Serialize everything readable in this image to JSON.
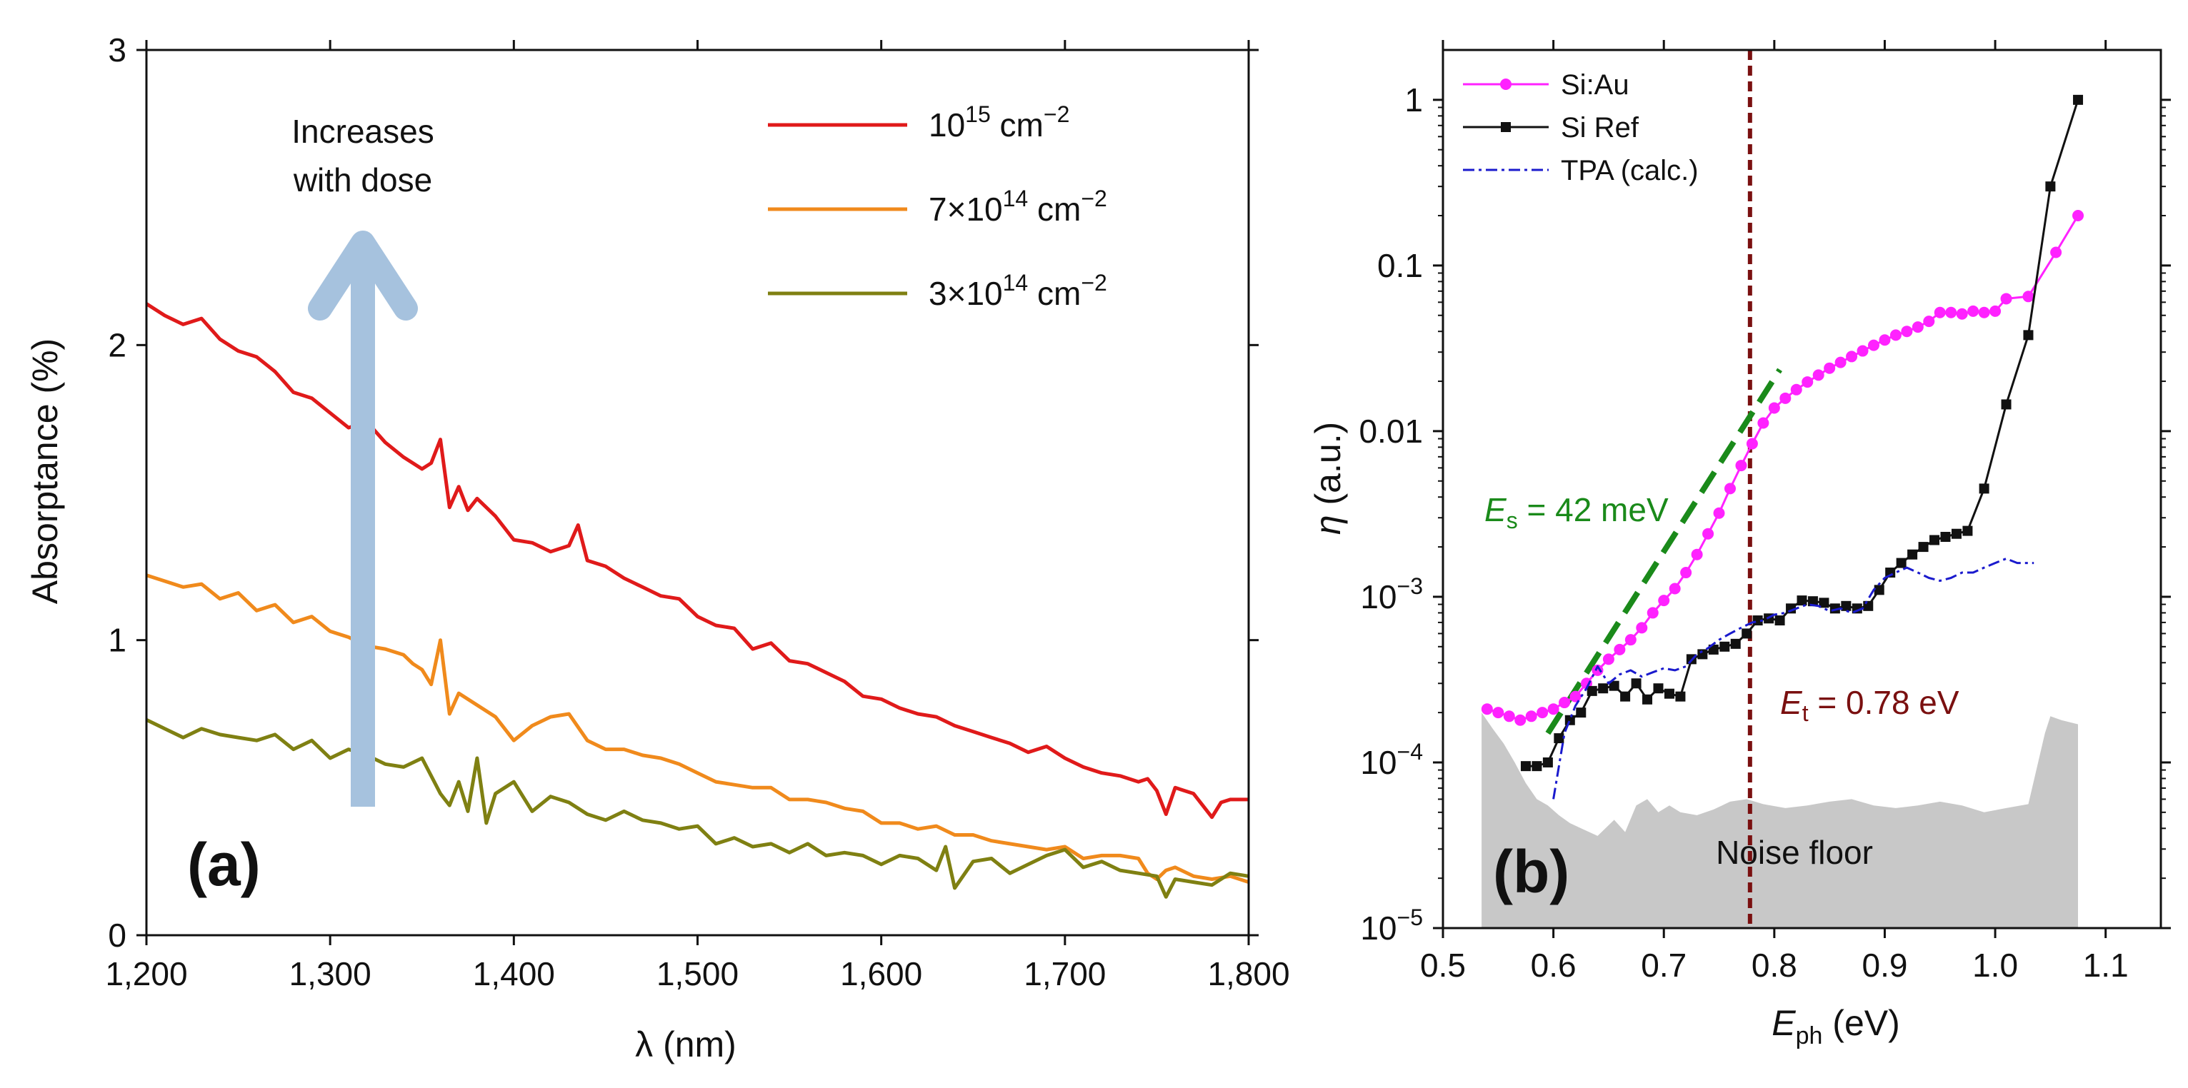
{
  "chart_data": [
    {
      "panel": "(a)",
      "type": "line",
      "xlabel": "λ (nm)",
      "ylabel": "Absorptance (%)",
      "xlim": [
        1200,
        1800
      ],
      "ylim": [
        0,
        3
      ],
      "xticks": [
        1200,
        1300,
        1400,
        1500,
        1600,
        1700,
        1800
      ],
      "xtick_labels": [
        "1,200",
        "1,300",
        "1,400",
        "1,500",
        "1,600",
        "1,700",
        "1,800"
      ],
      "yticks": [
        0,
        1,
        2,
        3
      ],
      "ytick_labels": [
        "0",
        "1",
        "2",
        "3"
      ],
      "grid": false,
      "legend_position": "top-right",
      "annotation": {
        "line1": "Increases",
        "line2": "with dose"
      },
      "series": [
        {
          "name": "10^15 cm^-2",
          "label_base": "10",
          "label_exp": "15",
          "label_unit": " cm",
          "label_unit_exp": "−2",
          "color": "#e01a1a",
          "x": [
            1200,
            1210,
            1220,
            1230,
            1240,
            1250,
            1260,
            1270,
            1280,
            1290,
            1300,
            1310,
            1320,
            1330,
            1340,
            1350,
            1355,
            1360,
            1365,
            1370,
            1375,
            1380,
            1390,
            1400,
            1410,
            1420,
            1430,
            1435,
            1440,
            1450,
            1460,
            1470,
            1480,
            1490,
            1500,
            1510,
            1520,
            1530,
            1540,
            1550,
            1560,
            1570,
            1580,
            1590,
            1600,
            1610,
            1620,
            1630,
            1640,
            1650,
            1660,
            1670,
            1680,
            1690,
            1700,
            1710,
            1720,
            1730,
            1740,
            1745,
            1750,
            1755,
            1760,
            1770,
            1780,
            1785,
            1790,
            1800
          ],
          "y": [
            2.14,
            2.1,
            2.07,
            2.09,
            2.02,
            1.98,
            1.96,
            1.91,
            1.84,
            1.82,
            1.77,
            1.72,
            1.74,
            1.67,
            1.62,
            1.58,
            1.6,
            1.68,
            1.45,
            1.52,
            1.44,
            1.48,
            1.42,
            1.34,
            1.33,
            1.3,
            1.32,
            1.39,
            1.27,
            1.25,
            1.21,
            1.18,
            1.15,
            1.14,
            1.08,
            1.05,
            1.04,
            0.97,
            0.99,
            0.93,
            0.92,
            0.89,
            0.86,
            0.81,
            0.8,
            0.77,
            0.75,
            0.74,
            0.71,
            0.69,
            0.67,
            0.65,
            0.62,
            0.64,
            0.6,
            0.57,
            0.55,
            0.54,
            0.52,
            0.53,
            0.49,
            0.41,
            0.5,
            0.48,
            0.4,
            0.45,
            0.46,
            0.46
          ]
        },
        {
          "name": "7x10^14 cm^-2",
          "label_base": "7×10",
          "label_exp": "14",
          "label_unit": " cm",
          "label_unit_exp": "−2",
          "color": "#f08a1c",
          "x": [
            1200,
            1210,
            1220,
            1230,
            1240,
            1250,
            1260,
            1270,
            1280,
            1290,
            1300,
            1310,
            1320,
            1330,
            1340,
            1345,
            1350,
            1355,
            1360,
            1365,
            1370,
            1380,
            1390,
            1400,
            1410,
            1420,
            1430,
            1440,
            1450,
            1460,
            1470,
            1480,
            1490,
            1500,
            1510,
            1520,
            1530,
            1540,
            1550,
            1560,
            1570,
            1580,
            1590,
            1600,
            1610,
            1620,
            1630,
            1640,
            1650,
            1660,
            1670,
            1680,
            1690,
            1700,
            1710,
            1720,
            1730,
            1740,
            1745,
            1750,
            1755,
            1760,
            1770,
            1780,
            1790,
            1800
          ],
          "y": [
            1.22,
            1.2,
            1.18,
            1.19,
            1.14,
            1.16,
            1.1,
            1.12,
            1.06,
            1.08,
            1.03,
            1.01,
            0.98,
            0.97,
            0.95,
            0.92,
            0.9,
            0.85,
            1.0,
            0.75,
            0.82,
            0.78,
            0.74,
            0.66,
            0.71,
            0.74,
            0.75,
            0.66,
            0.63,
            0.63,
            0.61,
            0.6,
            0.58,
            0.55,
            0.52,
            0.51,
            0.5,
            0.5,
            0.46,
            0.46,
            0.45,
            0.43,
            0.42,
            0.38,
            0.38,
            0.36,
            0.37,
            0.34,
            0.34,
            0.32,
            0.31,
            0.3,
            0.29,
            0.3,
            0.26,
            0.27,
            0.27,
            0.26,
            0.21,
            0.19,
            0.22,
            0.23,
            0.2,
            0.19,
            0.2,
            0.18
          ]
        },
        {
          "name": "3x10^14 cm^-2",
          "label_base": "3×10",
          "label_exp": "14",
          "label_unit": " cm",
          "label_unit_exp": "−2",
          "color": "#7f8012",
          "x": [
            1200,
            1210,
            1220,
            1230,
            1240,
            1250,
            1260,
            1270,
            1280,
            1290,
            1300,
            1310,
            1320,
            1330,
            1340,
            1350,
            1360,
            1365,
            1370,
            1375,
            1380,
            1385,
            1390,
            1400,
            1410,
            1420,
            1430,
            1440,
            1450,
            1460,
            1470,
            1480,
            1490,
            1500,
            1510,
            1520,
            1530,
            1540,
            1550,
            1560,
            1570,
            1580,
            1590,
            1600,
            1610,
            1620,
            1630,
            1635,
            1640,
            1650,
            1660,
            1670,
            1680,
            1690,
            1700,
            1710,
            1720,
            1730,
            1740,
            1750,
            1755,
            1760,
            1770,
            1780,
            1790,
            1800
          ],
          "y": [
            0.73,
            0.7,
            0.67,
            0.7,
            0.68,
            0.67,
            0.66,
            0.68,
            0.63,
            0.66,
            0.6,
            0.63,
            0.61,
            0.58,
            0.57,
            0.6,
            0.48,
            0.44,
            0.52,
            0.42,
            0.6,
            0.38,
            0.48,
            0.52,
            0.42,
            0.47,
            0.45,
            0.41,
            0.39,
            0.42,
            0.39,
            0.38,
            0.36,
            0.37,
            0.31,
            0.33,
            0.3,
            0.31,
            0.28,
            0.31,
            0.27,
            0.28,
            0.27,
            0.24,
            0.27,
            0.26,
            0.22,
            0.3,
            0.16,
            0.25,
            0.26,
            0.21,
            0.24,
            0.27,
            0.29,
            0.23,
            0.25,
            0.22,
            0.21,
            0.2,
            0.13,
            0.19,
            0.18,
            0.17,
            0.21,
            0.2
          ]
        }
      ]
    },
    {
      "panel": "(b)",
      "type": "line",
      "yscale": "log",
      "xlabel_main": "E",
      "xlabel_sub": "ph",
      "xlabel_unit": " (eV)",
      "ylabel_main": "η",
      "ylabel_unit": " (a.u.)",
      "xlim": [
        0.5,
        1.15
      ],
      "ylim": [
        1e-05,
        2
      ],
      "xticks": [
        0.5,
        0.6,
        0.7,
        0.8,
        0.9,
        1.0,
        1.1
      ],
      "xtick_labels": [
        "0.5",
        "0.6",
        "0.7",
        "0.8",
        "0.9",
        "1.0",
        "1.1"
      ],
      "yticks": [
        1e-05,
        0.0001,
        0.001,
        0.01,
        0.1,
        1
      ],
      "ytick_labels": [
        {
          "base": "10",
          "exp": "−5"
        },
        {
          "base": "10",
          "exp": "−4"
        },
        {
          "base": "10",
          "exp": "−3"
        },
        {
          "base": "0.01",
          "exp": ""
        },
        {
          "base": "0.1",
          "exp": ""
        },
        {
          "base": "1",
          "exp": ""
        }
      ],
      "grid": false,
      "legend_position": "top-left",
      "vline": {
        "x": 0.778,
        "color": "#7a1010",
        "label_main": "E",
        "label_sub": "t",
        "label_rest": " = 0.78 eV"
      },
      "fit_line": {
        "x": [
          0.595,
          0.805
        ],
        "y": [
          0.00015,
          0.0235
        ],
        "color": "#1a8a1a",
        "label_main": "E",
        "label_sub": "s",
        "label_rest": " = 42 meV"
      },
      "noise_floor": {
        "label": "Noise floor",
        "color": "#c8c8c8",
        "x": [
          0.535,
          0.545,
          0.555,
          0.565,
          0.575,
          0.585,
          0.595,
          0.605,
          0.615,
          0.625,
          0.64,
          0.655,
          0.665,
          0.675,
          0.685,
          0.695,
          0.705,
          0.715,
          0.73,
          0.745,
          0.76,
          0.775,
          0.79,
          0.81,
          0.83,
          0.85,
          0.87,
          0.89,
          0.91,
          0.93,
          0.95,
          0.97,
          0.99,
          1.01,
          1.03,
          1.045,
          1.05,
          1.06,
          1.075
        ],
        "y": [
          0.0002,
          0.00016,
          0.00013,
          0.0001,
          7.5e-05,
          6e-05,
          5.5e-05,
          4.8e-05,
          4.3e-05,
          4e-05,
          3.6e-05,
          4.5e-05,
          3.8e-05,
          5.5e-05,
          6e-05,
          5e-05,
          5.5e-05,
          5e-05,
          4.8e-05,
          5.2e-05,
          5.8e-05,
          6e-05,
          5.6e-05,
          5.3e-05,
          5.5e-05,
          5.8e-05,
          6e-05,
          5.5e-05,
          5.3e-05,
          5.5e-05,
          5.8e-05,
          5.5e-05,
          5e-05,
          5.3e-05,
          5.6e-05,
          0.00015,
          0.00019,
          0.00018,
          0.00017
        ]
      },
      "series": [
        {
          "name": "Si:Au",
          "color": "#ff22ff",
          "marker": "circle",
          "x": [
            0.54,
            0.55,
            0.56,
            0.57,
            0.58,
            0.59,
            0.6,
            0.61,
            0.62,
            0.63,
            0.64,
            0.65,
            0.66,
            0.67,
            0.68,
            0.69,
            0.7,
            0.71,
            0.72,
            0.73,
            0.74,
            0.75,
            0.76,
            0.77,
            0.78,
            0.79,
            0.8,
            0.81,
            0.82,
            0.83,
            0.84,
            0.85,
            0.86,
            0.87,
            0.88,
            0.89,
            0.9,
            0.91,
            0.92,
            0.93,
            0.94,
            0.95,
            0.96,
            0.97,
            0.98,
            0.99,
            1.0,
            1.01,
            1.03,
            1.055,
            1.075
          ],
          "y": [
            0.00021,
            0.0002,
            0.00019,
            0.00018,
            0.00019,
            0.0002,
            0.00021,
            0.00023,
            0.00025,
            0.0003,
            0.00036,
            0.00042,
            0.00048,
            0.00055,
            0.00065,
            0.0008,
            0.00095,
            0.00112,
            0.0014,
            0.0018,
            0.0024,
            0.0032,
            0.0045,
            0.0062,
            0.0084,
            0.0112,
            0.0138,
            0.0158,
            0.0178,
            0.0198,
            0.0218,
            0.024,
            0.026,
            0.0282,
            0.0305,
            0.033,
            0.0355,
            0.038,
            0.04,
            0.0425,
            0.046,
            0.052,
            0.052,
            0.051,
            0.053,
            0.052,
            0.053,
            0.063,
            0.065,
            0.12,
            0.2
          ]
        },
        {
          "name": "Si Ref",
          "color": "#111111",
          "marker": "square",
          "x": [
            0.575,
            0.585,
            0.595,
            0.605,
            0.615,
            0.625,
            0.635,
            0.645,
            0.655,
            0.665,
            0.675,
            0.685,
            0.695,
            0.705,
            0.715,
            0.725,
            0.735,
            0.745,
            0.755,
            0.765,
            0.775,
            0.785,
            0.795,
            0.805,
            0.815,
            0.825,
            0.835,
            0.845,
            0.855,
            0.865,
            0.875,
            0.885,
            0.895,
            0.905,
            0.915,
            0.925,
            0.935,
            0.945,
            0.955,
            0.965,
            0.975,
            0.99,
            1.01,
            1.03,
            1.05,
            1.075
          ],
          "y": [
            9.5e-05,
            9.5e-05,
            0.0001,
            0.00014,
            0.00018,
            0.0002,
            0.00027,
            0.00028,
            0.00029,
            0.00025,
            0.0003,
            0.00024,
            0.00028,
            0.00026,
            0.00025,
            0.00042,
            0.00045,
            0.00048,
            0.0005,
            0.00052,
            0.0006,
            0.00072,
            0.00074,
            0.00072,
            0.00085,
            0.00095,
            0.00094,
            0.00092,
            0.00085,
            0.00088,
            0.00085,
            0.00088,
            0.0011,
            0.0014,
            0.0016,
            0.0018,
            0.002,
            0.0022,
            0.0023,
            0.0024,
            0.0025,
            0.0045,
            0.0145,
            0.038,
            0.3,
            1.0
          ]
        },
        {
          "name": "TPA (calc.)",
          "color": "#1a1acd",
          "marker": "none",
          "dash": "dashdot",
          "x": [
            0.6,
            0.61,
            0.62,
            0.63,
            0.64,
            0.65,
            0.66,
            0.67,
            0.68,
            0.69,
            0.7,
            0.71,
            0.72,
            0.73,
            0.74,
            0.75,
            0.76,
            0.77,
            0.78,
            0.79,
            0.8,
            0.81,
            0.82,
            0.83,
            0.84,
            0.85,
            0.86,
            0.87,
            0.88,
            0.89,
            0.9,
            0.91,
            0.92,
            0.93,
            0.94,
            0.95,
            0.96,
            0.97,
            0.98,
            0.99,
            1.0,
            1.01,
            1.02,
            1.035
          ],
          "y": [
            6e-05,
            0.00015,
            0.00022,
            0.00028,
            0.00038,
            0.0003,
            0.00034,
            0.00036,
            0.00033,
            0.00035,
            0.00037,
            0.00036,
            0.00038,
            0.00045,
            0.00049,
            0.00055,
            0.0006,
            0.00065,
            0.0007,
            0.00072,
            0.00078,
            0.0008,
            0.00085,
            0.0009,
            0.00088,
            0.00082,
            0.00085,
            0.0008,
            0.00085,
            0.0011,
            0.0013,
            0.0014,
            0.0015,
            0.0014,
            0.0013,
            0.00125,
            0.0013,
            0.0014,
            0.0014,
            0.0015,
            0.0016,
            0.0017,
            0.0016,
            0.0016
          ]
        }
      ]
    }
  ]
}
